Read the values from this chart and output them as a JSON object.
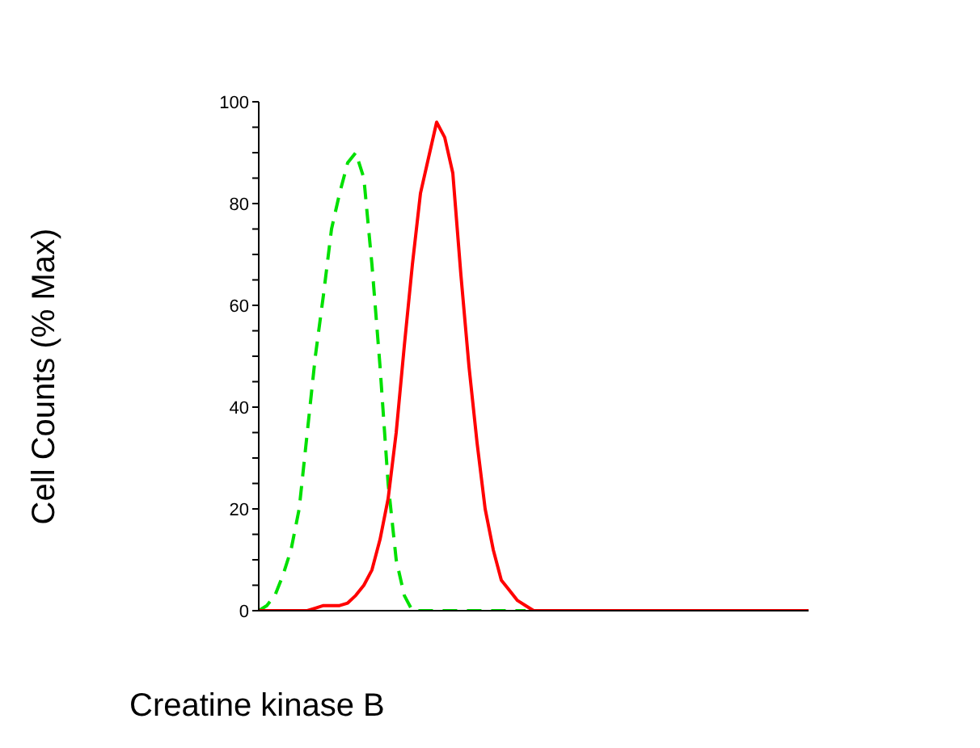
{
  "chart_data": {
    "type": "line",
    "xlabel": "Creatine kinase B",
    "ylabel": "Cell Counts (% Max)",
    "categories": [
      null,
      null,
      null,
      null,
      null,
      null,
      null,
      null,
      null,
      null,
      null,
      null,
      null,
      null,
      null,
      null,
      null,
      null,
      null,
      null,
      null,
      null,
      null,
      null,
      null,
      null,
      null,
      null,
      null,
      null,
      null,
      null,
      null,
      null,
      null,
      null,
      null,
      null,
      null,
      null,
      null,
      null,
      null,
      null,
      null,
      null,
      null,
      null,
      null,
      null,
      null,
      null,
      null,
      null,
      null,
      null,
      null,
      null,
      null,
      null,
      null,
      null,
      null,
      null,
      null,
      null,
      null,
      null,
      null
    ],
    "series": [
      {
        "color": "#00e000",
        "line_style": "dashed",
        "values": [
          0,
          1,
          3,
          7,
          12,
          20,
          35,
          50,
          62,
          75,
          82,
          88,
          90,
          85,
          68,
          48,
          25,
          10,
          3,
          0,
          0,
          0,
          0,
          0,
          0,
          0,
          0,
          0,
          0,
          0,
          0,
          0,
          0,
          0,
          null,
          null,
          null,
          null,
          null,
          null,
          null,
          null,
          null,
          null,
          null,
          null,
          null,
          null,
          null,
          null,
          null,
          null,
          null,
          null,
          null,
          null,
          null,
          null,
          null,
          null,
          null,
          null,
          null,
          null,
          null,
          null,
          null,
          null,
          null
        ]
      },
      {
        "color": "#ff0000",
        "line_style": "solid",
        "values": [
          0,
          0,
          0,
          0,
          0,
          0,
          0,
          0.5,
          1,
          1,
          1,
          1.5,
          3,
          5,
          8,
          14,
          22,
          35,
          52,
          68,
          82,
          89,
          96,
          93,
          86,
          66,
          48,
          33,
          20,
          12,
          6,
          4,
          2,
          1,
          0,
          0,
          0,
          0,
          0,
          0,
          0,
          0,
          0,
          0,
          0,
          0,
          0,
          0,
          0,
          0,
          0,
          0,
          0,
          0,
          0,
          0,
          0,
          0,
          0,
          0,
          0,
          0,
          0,
          0,
          0,
          0,
          0,
          0,
          0
        ]
      }
    ],
    "ylim": [
      0,
      100
    ],
    "yticks": [
      0,
      {
        "value": 5,
        "label": null
      },
      {
        "value": 10,
        "label": null
      },
      {
        "value": 15,
        "label": null
      },
      20,
      {
        "value": 25,
        "label": null
      },
      {
        "value": 30,
        "label": null
      },
      {
        "value": 35,
        "label": null
      },
      40,
      {
        "value": 45,
        "label": null
      },
      {
        "value": 50,
        "label": null
      },
      {
        "value": 55,
        "label": null
      },
      60,
      {
        "value": 65,
        "label": null
      },
      {
        "value": 70,
        "label": null
      },
      {
        "value": 75,
        "label": null
      },
      80,
      {
        "value": 85,
        "label": null
      },
      {
        "value": 90,
        "label": null
      },
      {
        "value": 95,
        "label": null
      },
      100
    ],
    "grid": false,
    "legend": false,
    "marker": "none"
  }
}
